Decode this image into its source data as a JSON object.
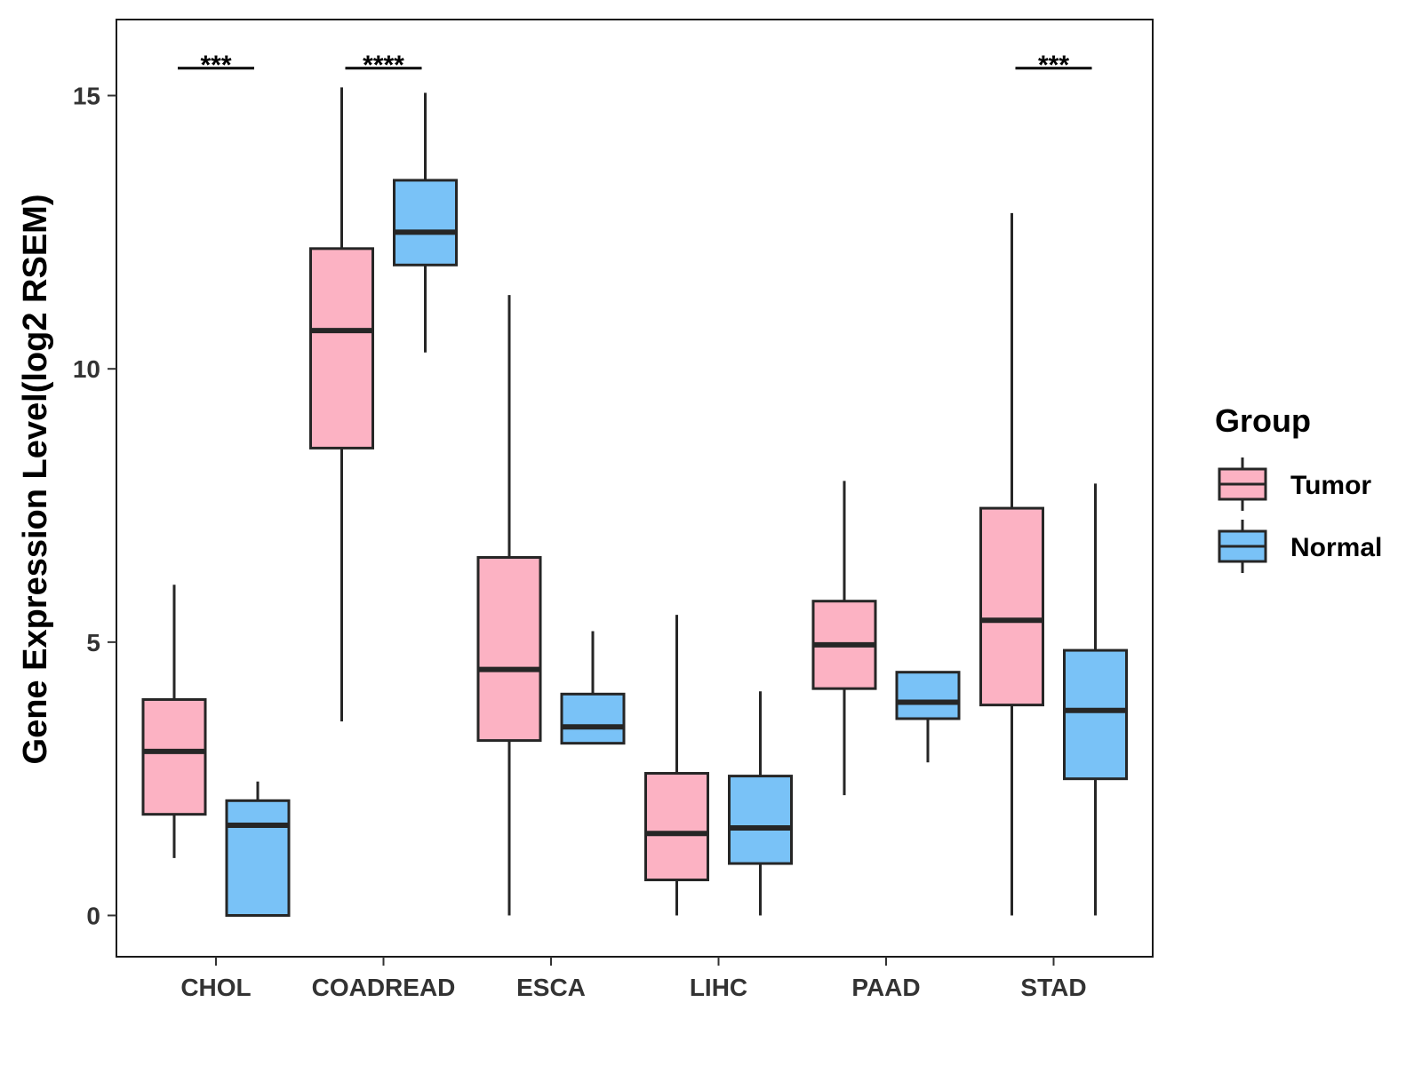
{
  "chart_data": {
    "type": "boxplot",
    "title": "",
    "xlabel": "",
    "ylabel": "Gene Expression Level(log2 RSEM)",
    "ylim": [
      -0.75,
      16.35
    ],
    "yticks": [
      0,
      5,
      10,
      15
    ],
    "grid": false,
    "categories": [
      "CHOL",
      "COADREAD",
      "ESCA",
      "LIHC",
      "PAAD",
      "STAD"
    ],
    "series": [
      {
        "name": "Tumor",
        "color": "#fcb2c3",
        "boxes": [
          {
            "category": "CHOL",
            "whisker_low": 1.05,
            "q1": 1.85,
            "median": 3.0,
            "q3": 3.95,
            "whisker_high": 6.05
          },
          {
            "category": "COADREAD",
            "whisker_low": 3.55,
            "q1": 8.55,
            "median": 10.7,
            "q3": 12.2,
            "whisker_high": 15.15
          },
          {
            "category": "ESCA",
            "whisker_low": 0.0,
            "q1": 3.2,
            "median": 4.5,
            "q3": 6.55,
            "whisker_high": 11.35
          },
          {
            "category": "LIHC",
            "whisker_low": 0.0,
            "q1": 0.65,
            "median": 1.5,
            "q3": 2.6,
            "whisker_high": 5.5
          },
          {
            "category": "PAAD",
            "whisker_low": 2.2,
            "q1": 4.15,
            "median": 4.95,
            "q3": 5.75,
            "whisker_high": 7.95
          },
          {
            "category": "STAD",
            "whisker_low": 0.0,
            "q1": 3.85,
            "median": 5.4,
            "q3": 7.45,
            "whisker_high": 12.85
          }
        ]
      },
      {
        "name": "Normal",
        "color": "#79c2f7",
        "boxes": [
          {
            "category": "CHOL",
            "whisker_low": 0.0,
            "q1": 0.0,
            "median": 1.65,
            "q3": 2.1,
            "whisker_high": 2.45
          },
          {
            "category": "COADREAD",
            "whisker_low": 10.3,
            "q1": 11.9,
            "median": 12.5,
            "q3": 13.45,
            "whisker_high": 15.05
          },
          {
            "category": "ESCA",
            "whisker_low": 3.15,
            "q1": 3.15,
            "median": 3.45,
            "q3": 4.05,
            "whisker_high": 5.2
          },
          {
            "category": "LIHC",
            "whisker_low": 0.0,
            "q1": 0.95,
            "median": 1.6,
            "q3": 2.55,
            "whisker_high": 4.1
          },
          {
            "category": "PAAD",
            "whisker_low": 2.8,
            "q1": 3.6,
            "median": 3.9,
            "q3": 4.45,
            "whisker_high": 4.45
          },
          {
            "category": "STAD",
            "whisker_low": 0.0,
            "q1": 2.5,
            "median": 3.75,
            "q3": 4.85,
            "whisker_high": 7.9
          }
        ]
      }
    ],
    "annotations": [
      {
        "category": "CHOL",
        "label": "***",
        "y": 15.5
      },
      {
        "category": "COADREAD",
        "label": "****",
        "y": 15.5
      },
      {
        "category": "STAD",
        "label": "***",
        "y": 15.5
      }
    ],
    "legend": {
      "title": "Group",
      "position": "right",
      "entries": [
        "Tumor",
        "Normal"
      ]
    }
  }
}
